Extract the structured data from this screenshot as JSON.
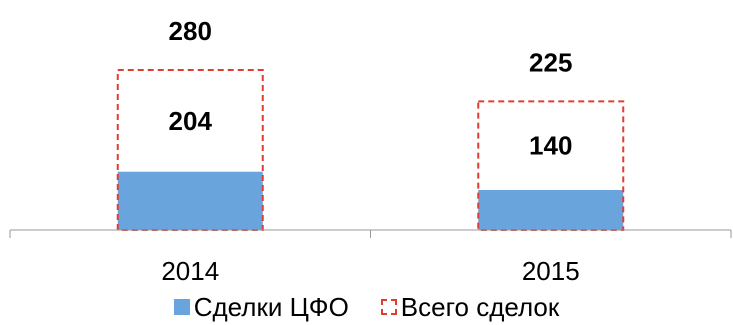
{
  "chart_data": {
    "type": "bar",
    "categories": [
      "2014",
      "2015"
    ],
    "series": [
      {
        "name": "Сделки ЦФО",
        "values": [
          204,
          140
        ],
        "color": "#6aa4dc",
        "style": "solid"
      },
      {
        "name": "Всего сделок",
        "values": [
          280,
          225
        ],
        "color": "#e03c31",
        "style": "dashed-outline"
      }
    ],
    "title": "",
    "xlabel": "",
    "ylabel": "",
    "ylim": [
      0,
      280
    ],
    "grid": false,
    "legend": "bottom",
    "overlap": true
  }
}
